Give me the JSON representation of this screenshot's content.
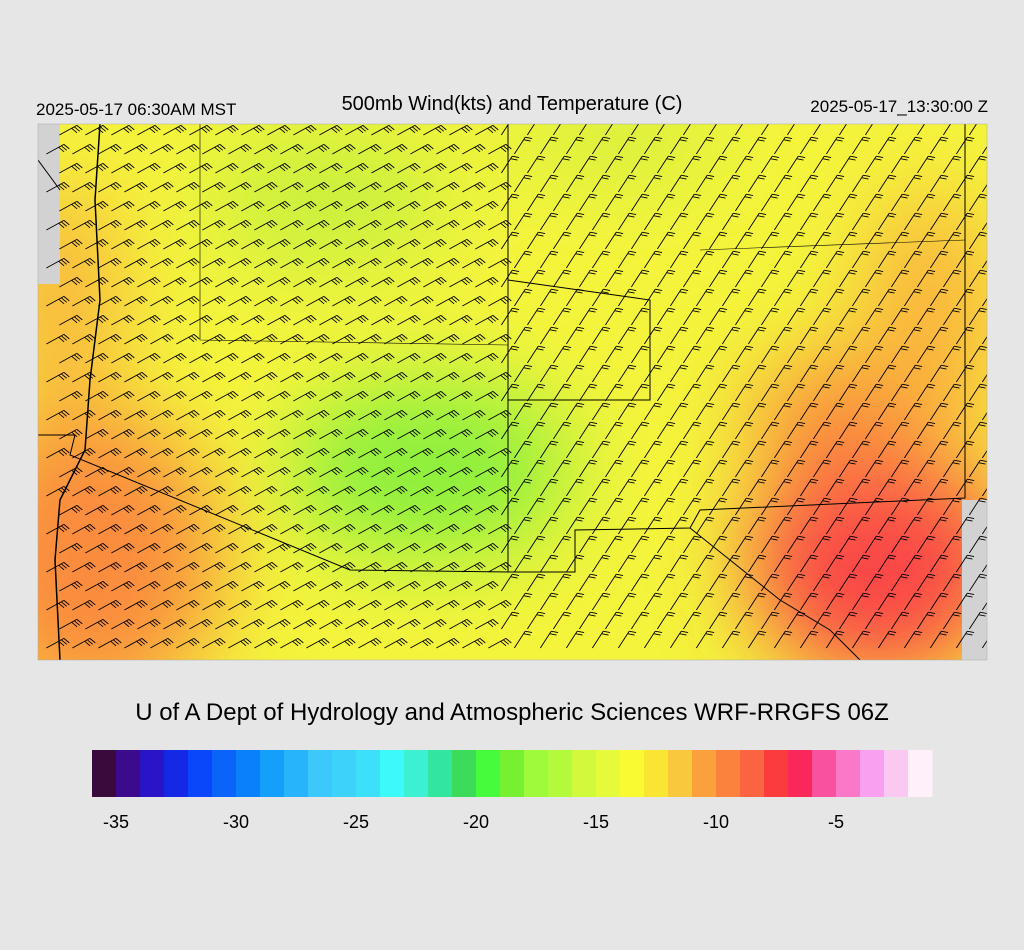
{
  "header": {
    "local_time": "2025-05-17 06:30AM MST",
    "title": "500mb Wind(kts) and Temperature (C)",
    "valid_time": "2025-05-17_13:30:00 Z"
  },
  "footer": {
    "credit": "U of A Dept of Hydrology and Atmospheric Sciences WRF-RRGFS 06Z"
  },
  "colorbar": {
    "range": [
      -36,
      -1
    ],
    "ticks": [
      -35,
      -30,
      -25,
      -20,
      -15,
      -10,
      -5
    ],
    "colors": [
      "#3a0a3c",
      "#3c0a8c",
      "#2a14c8",
      "#1428e6",
      "#0a46fa",
      "#0a64fa",
      "#0a80fa",
      "#14a0fa",
      "#28b4fa",
      "#3cc8fa",
      "#3cd2fa",
      "#3ce0fa",
      "#3cfafa",
      "#3cf0d2",
      "#32e6a0",
      "#3cdc5a",
      "#46fa3c",
      "#78f032",
      "#a0fa3c",
      "#b4fa3c",
      "#d2fa3c",
      "#e6fa3c",
      "#fafa32",
      "#fae632",
      "#fac83c",
      "#faa03c",
      "#fa823c",
      "#fa6440",
      "#fa3c3c",
      "#fa285a",
      "#fa50a0",
      "#fa78c8",
      "#faa0f0",
      "#fac8f0",
      "#fff0fa"
    ]
  }
}
